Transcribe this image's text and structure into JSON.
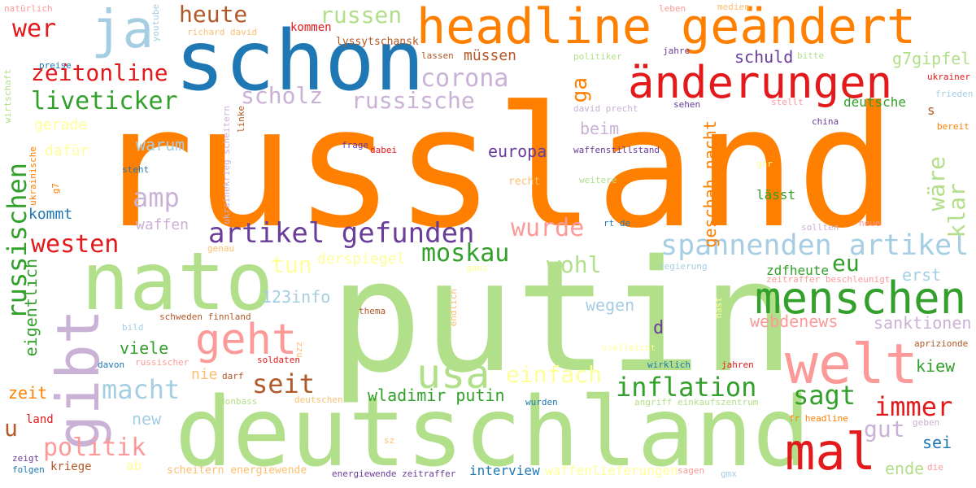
{
  "palette": {
    "orange": "#ff7f00",
    "light_green": "#b2df8a",
    "dark_green": "#33a02c",
    "blue": "#1f78b4",
    "light_blue": "#a6cee3",
    "red": "#e31a1c",
    "pink": "#fb9a99",
    "purple": "#6a3d9a",
    "lavender": "#cab2d6",
    "brown": "#b15928",
    "light_orange": "#fdbf6f",
    "yellow": "#ffff99"
  },
  "words": [
    {
      "text": "russland",
      "color": "orange"
    },
    {
      "text": "putin",
      "color": "light_green"
    },
    {
      "text": "deutschland",
      "color": "light_green"
    },
    {
      "text": "schon",
      "color": "blue"
    },
    {
      "text": "nato",
      "color": "light_green"
    },
    {
      "text": "headline geändert",
      "color": "orange"
    },
    {
      "text": "änderungen",
      "color": "red"
    },
    {
      "text": "menschen",
      "color": "dark_green"
    },
    {
      "text": "welt",
      "color": "pink"
    },
    {
      "text": "mal",
      "color": "red"
    },
    {
      "text": "ja",
      "color": "light_blue"
    },
    {
      "text": "geht",
      "color": "pink"
    },
    {
      "text": "gibt",
      "color": "lavender"
    },
    {
      "text": "usa",
      "color": "light_green"
    },
    {
      "text": "artikel gefunden",
      "color": "purple"
    },
    {
      "text": "spannenden artikel",
      "color": "light_blue"
    },
    {
      "text": "russischen",
      "color": "dark_green"
    },
    {
      "text": "inflation",
      "color": "dark_green"
    },
    {
      "text": "macht",
      "color": "light_blue"
    },
    {
      "text": "seit",
      "color": "brown"
    },
    {
      "text": "sagt",
      "color": "dark_green"
    },
    {
      "text": "immer",
      "color": "red"
    },
    {
      "text": "moskau",
      "color": "dark_green"
    },
    {
      "text": "wurde",
      "color": "pink"
    },
    {
      "text": "politik",
      "color": "pink"
    },
    {
      "text": "westen",
      "color": "red"
    },
    {
      "text": "einfach",
      "color": "yellow"
    },
    {
      "text": "amp",
      "color": "lavender"
    },
    {
      "text": "wohl",
      "color": "light_green"
    },
    {
      "text": "tun",
      "color": "yellow"
    },
    {
      "text": "corona",
      "color": "lavender"
    },
    {
      "text": "russische",
      "color": "lavender"
    },
    {
      "text": "scholz",
      "color": "lavender"
    },
    {
      "text": "liveticker",
      "color": "dark_green"
    },
    {
      "text": "zeitonline",
      "color": "red"
    },
    {
      "text": "heute",
      "color": "brown"
    },
    {
      "text": "russen",
      "color": "light_green"
    },
    {
      "text": "wer",
      "color": "red"
    },
    {
      "text": "eu",
      "color": "dark_green"
    },
    {
      "text": "gut",
      "color": "lavender"
    },
    {
      "text": "wladimir putin",
      "color": "dark_green"
    },
    {
      "text": "ende",
      "color": "light_green"
    },
    {
      "text": "kiew",
      "color": "dark_green"
    },
    {
      "text": "sei",
      "color": "blue"
    },
    {
      "text": "u",
      "color": "brown"
    },
    {
      "text": "zeit",
      "color": "orange"
    },
    {
      "text": "new",
      "color": "light_blue"
    },
    {
      "text": "viele",
      "color": "dark_green"
    },
    {
      "text": "nie",
      "color": "light_orange"
    },
    {
      "text": "wegen",
      "color": "light_blue"
    },
    {
      "text": "d",
      "color": "purple"
    },
    {
      "text": "europa",
      "color": "purple"
    },
    {
      "text": "beim",
      "color": "lavender"
    },
    {
      "text": "schuld",
      "color": "purple"
    },
    {
      "text": "müssen",
      "color": "brown"
    },
    {
      "text": "g7gipfel",
      "color": "light_green"
    },
    {
      "text": "deutsche",
      "color": "dark_green"
    },
    {
      "text": "wäre",
      "color": "light_green"
    },
    {
      "text": "klar",
      "color": "light_green"
    },
    {
      "text": "geschah nacht",
      "color": "orange"
    },
    {
      "text": "ga",
      "color": "orange"
    },
    {
      "text": "eigentlich",
      "color": "dark_green"
    },
    {
      "text": "sanktionen",
      "color": "lavender"
    },
    {
      "text": "webdenews",
      "color": "pink"
    },
    {
      "text": "erst",
      "color": "light_blue"
    },
    {
      "text": "zdfheute",
      "color": "dark_green"
    },
    {
      "text": "123info",
      "color": "light_blue"
    },
    {
      "text": "derspiegel",
      "color": "yellow"
    },
    {
      "text": "warum",
      "color": "light_blue"
    },
    {
      "text": "waffen",
      "color": "lavender"
    },
    {
      "text": "kommt",
      "color": "blue"
    },
    {
      "text": "gerade",
      "color": "yellow"
    },
    {
      "text": "dafür",
      "color": "yellow"
    },
    {
      "text": "lässt",
      "color": "dark_green"
    },
    {
      "text": "s",
      "color": "brown"
    },
    {
      "text": "interview",
      "color": "blue"
    },
    {
      "text": "waffenlieferungen",
      "color": "yellow"
    },
    {
      "text": "land",
      "color": "red"
    },
    {
      "text": "kriege",
      "color": "brown"
    },
    {
      "text": "ab",
      "color": "yellow"
    },
    {
      "text": "kommen",
      "color": "red"
    },
    {
      "text": "lyssytschansk",
      "color": "brown"
    },
    {
      "text": "preise",
      "color": "blue"
    },
    {
      "text": "natürlich",
      "color": "pink"
    },
    {
      "text": "richard david",
      "color": "light_orange"
    },
    {
      "text": "lassen",
      "color": "brown"
    },
    {
      "text": "politiker",
      "color": "light_green"
    },
    {
      "text": "jahre",
      "color": "purple"
    },
    {
      "text": "leben",
      "color": "pink"
    },
    {
      "text": "medien",
      "color": "light_orange"
    },
    {
      "text": "bitte",
      "color": "light_green"
    },
    {
      "text": "ukrainer",
      "color": "red"
    },
    {
      "text": "frieden",
      "color": "light_blue"
    },
    {
      "text": "bereit",
      "color": "orange"
    },
    {
      "text": "stellt",
      "color": "pink"
    },
    {
      "text": "sehen",
      "color": "purple"
    },
    {
      "text": "david precht",
      "color": "lavender"
    },
    {
      "text": "china",
      "color": "purple"
    },
    {
      "text": "waffenstillstand",
      "color": "purple"
    },
    {
      "text": "frage",
      "color": "purple"
    },
    {
      "text": "dabei",
      "color": "red"
    },
    {
      "text": "steht",
      "color": "blue"
    },
    {
      "text": "recht",
      "color": "light_orange"
    },
    {
      "text": "weitere",
      "color": "light_green"
    },
    {
      "text": "rt de",
      "color": "blue"
    },
    {
      "text": "sollten",
      "color": "lavender"
    },
    {
      "text": "neue",
      "color": "pink"
    },
    {
      "text": "regierung",
      "color": "light_blue"
    },
    {
      "text": "zeitraffer beschleunigt",
      "color": "pink"
    },
    {
      "text": "thema",
      "color": "brown"
    },
    {
      "text": "schweden finnland",
      "color": "brown"
    },
    {
      "text": "bild",
      "color": "light_blue"
    },
    {
      "text": "davon",
      "color": "blue"
    },
    {
      "text": "russischer",
      "color": "pink"
    },
    {
      "text": "soldaten",
      "color": "red"
    },
    {
      "text": "darf",
      "color": "brown"
    },
    {
      "text": "wirklich",
      "color": "blue"
    },
    {
      "text": "jahren",
      "color": "red"
    },
    {
      "text": "aprizionde",
      "color": "brown"
    },
    {
      "text": "donbass",
      "color": "light_green"
    },
    {
      "text": "deutschen",
      "color": "light_orange"
    },
    {
      "text": "wurden",
      "color": "blue"
    },
    {
      "text": "angriff einkaufszentrum",
      "color": "light_green"
    },
    {
      "text": "fr headline",
      "color": "orange"
    },
    {
      "text": "geben",
      "color": "lavender"
    },
    {
      "text": "zeigt",
      "color": "purple"
    },
    {
      "text": "folgen",
      "color": "blue"
    },
    {
      "text": "scheitern energiewende",
      "color": "light_orange"
    },
    {
      "text": "energiewende zeitraffer",
      "color": "purple"
    },
    {
      "text": "sagen",
      "color": "pink"
    },
    {
      "text": "gmx",
      "color": "light_blue"
    },
    {
      "text": "die",
      "color": "pink"
    },
    {
      "text": "genau",
      "color": "light_orange"
    },
    {
      "text": "sz",
      "color": "light_orange"
    },
    {
      "text": "wirtschaft",
      "color": "light_green"
    },
    {
      "text": "ukrainische",
      "color": "orange"
    },
    {
      "text": "g7",
      "color": "orange"
    },
    {
      "text": "youtube",
      "color": "light_blue"
    },
    {
      "text": "ukrainekrieg scheitern",
      "color": "lavender"
    },
    {
      "text": "linke",
      "color": "brown"
    },
    {
      "text": "nzz",
      "color": "light_orange"
    },
    {
      "text": "gar",
      "color": "yellow"
    },
    {
      "text": "vielleicht",
      "color": "yellow"
    },
    {
      "text": "endlich",
      "color": "light_orange"
    },
    {
      "text": "ganz",
      "color": "yellow"
    },
    {
      "text": "hast",
      "color": "yellow"
    }
  ]
}
